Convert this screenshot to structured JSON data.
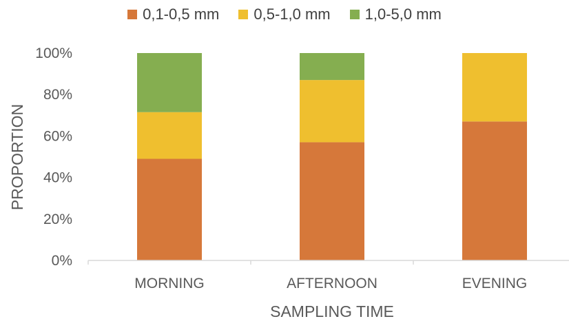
{
  "chart_data": {
    "type": "bar",
    "stacked": true,
    "categories": [
      "MORNING",
      "AFTERNOON",
      "EVENING"
    ],
    "series": [
      {
        "name": "0,1-0,5 mm",
        "color": "#D6783A",
        "values": [
          49,
          57,
          67
        ]
      },
      {
        "name": "0,5-1,0 mm",
        "color": "#EFBF2F",
        "values": [
          22.5,
          30,
          33
        ]
      },
      {
        "name": "1,0-5,0 mm",
        "color": "#85AE50",
        "values": [
          28.5,
          13,
          0
        ]
      }
    ],
    "xlabel": "SAMPLING TIME",
    "ylabel": "PROPORTION",
    "ylim": [
      0,
      100
    ],
    "yticks": [
      "0%",
      "20%",
      "40%",
      "60%",
      "80%",
      "100%"
    ],
    "legend_position": "top",
    "grid": false
  }
}
